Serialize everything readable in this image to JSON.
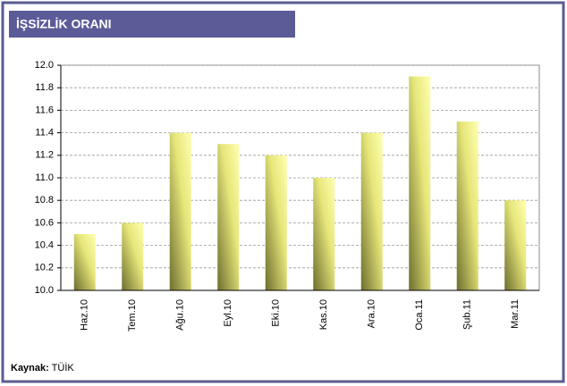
{
  "chart_data": {
    "type": "bar",
    "title": "İŞSİZLİK ORANI",
    "categories": [
      "Haz.10",
      "Tem.10",
      "Ağu.10",
      "Eyl.10",
      "Eki.10",
      "Kas.10",
      "Ara.10",
      "Oca.11",
      "Şub.11",
      "Mar.11"
    ],
    "values": [
      10.5,
      10.6,
      11.4,
      11.3,
      11.2,
      11.0,
      11.4,
      11.9,
      11.5,
      10.8
    ],
    "color": "#e6e67a",
    "ylim": [
      10,
      12
    ],
    "yticks": [
      {
        "value": 10,
        "label": "10.0"
      },
      10.2,
      10.4,
      10.6,
      10.8,
      {
        "value": 11,
        "label": "11.0"
      },
      11.2,
      11.4,
      11.6,
      11.8,
      {
        "value": 12,
        "label": "12.0"
      }
    ],
    "grid": true,
    "source_label": "Kaynak:",
    "source": "TÜİK"
  }
}
